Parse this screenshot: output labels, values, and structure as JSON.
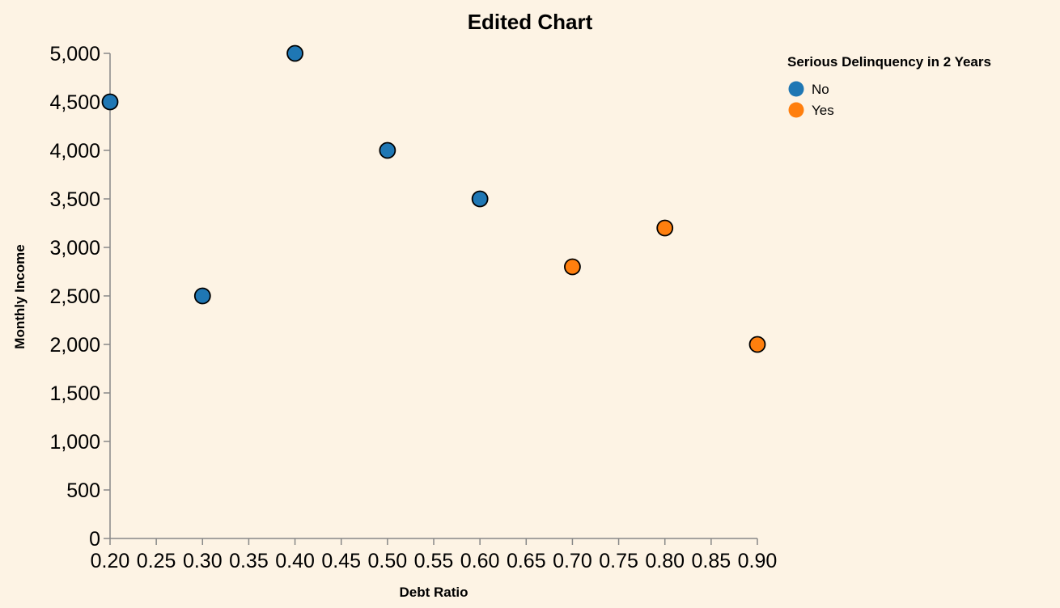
{
  "chart_data": {
    "type": "scatter",
    "title": "Edited Chart",
    "xlabel": "Debt Ratio",
    "ylabel": "Monthly Income",
    "xlim": [
      0.2,
      0.9
    ],
    "ylim": [
      0,
      5000
    ],
    "x_ticks": [
      "0.20",
      "0.25",
      "0.30",
      "0.35",
      "0.40",
      "0.45",
      "0.50",
      "0.55",
      "0.60",
      "0.65",
      "0.70",
      "0.75",
      "0.80",
      "0.85",
      "0.90"
    ],
    "y_ticks": [
      "0",
      "500",
      "1,000",
      "1,500",
      "2,000",
      "2,500",
      "3,000",
      "3,500",
      "4,000",
      "4,500",
      "5,000"
    ],
    "grid": false,
    "legend": {
      "title": "Serious Delinquency in 2 Years",
      "placement": "top-right",
      "entries": [
        {
          "label": "No",
          "color": "#1f77b4"
        },
        {
          "label": "Yes",
          "color": "#ff7f0e"
        }
      ]
    },
    "series": [
      {
        "name": "No",
        "color": "#1f77b4",
        "points": [
          {
            "x": 0.2,
            "y": 4500
          },
          {
            "x": 0.3,
            "y": 2500
          },
          {
            "x": 0.4,
            "y": 5000
          },
          {
            "x": 0.5,
            "y": 4000
          },
          {
            "x": 0.6,
            "y": 3500
          }
        ]
      },
      {
        "name": "Yes",
        "color": "#ff7f0e",
        "points": [
          {
            "x": 0.7,
            "y": 2800
          },
          {
            "x": 0.8,
            "y": 3200
          },
          {
            "x": 0.9,
            "y": 2000
          }
        ]
      }
    ]
  }
}
